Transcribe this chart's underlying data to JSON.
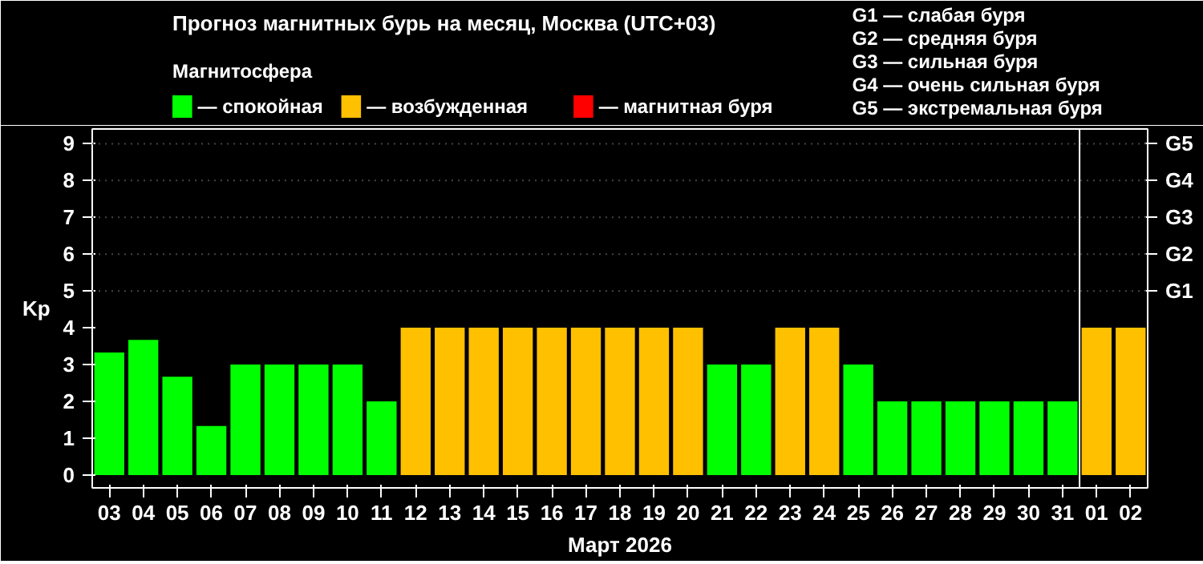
{
  "chart_data": {
    "type": "bar",
    "title": "Прогноз магнитных бурь на месяц, Москва (UTC+03)",
    "legend_title": "Магнитосфера",
    "xlabel": "Март 2026",
    "ylabel": "Kp",
    "categories": [
      "03",
      "04",
      "05",
      "06",
      "07",
      "08",
      "09",
      "10",
      "11",
      "12",
      "13",
      "14",
      "15",
      "16",
      "17",
      "18",
      "19",
      "20",
      "21",
      "22",
      "23",
      "24",
      "25",
      "26",
      "27",
      "28",
      "29",
      "30",
      "31",
      "01",
      "02"
    ],
    "stacked": true,
    "series": [
      {
        "name": "— спокойная",
        "color": "#00ff00",
        "values": [
          3.33,
          3.67,
          2.67,
          1.33,
          3,
          3,
          3,
          3,
          2,
          null,
          null,
          null,
          null,
          null,
          null,
          null,
          null,
          null,
          3,
          3,
          null,
          null,
          3,
          2,
          2,
          2,
          2,
          2,
          2,
          null,
          null
        ]
      },
      {
        "name": "— возбужденная",
        "color": "#ffc000",
        "values": [
          null,
          null,
          null,
          null,
          null,
          null,
          null,
          null,
          null,
          4,
          4,
          4,
          4,
          4,
          4,
          4,
          4,
          4,
          null,
          null,
          4,
          4,
          null,
          null,
          null,
          null,
          null,
          null,
          null,
          4,
          4
        ]
      },
      {
        "name": "— магнитная буря",
        "color": "#ff0000",
        "values": [
          null,
          null,
          null,
          null,
          null,
          null,
          null,
          null,
          null,
          null,
          null,
          null,
          null,
          null,
          null,
          null,
          null,
          null,
          null,
          null,
          null,
          null,
          null,
          null,
          null,
          null,
          null,
          null,
          null,
          null,
          null
        ]
      }
    ],
    "ylim": [
      -0.35,
      9.4
    ],
    "yticks": [
      0,
      1,
      2,
      3,
      4,
      5,
      6,
      7,
      8,
      9
    ],
    "legend": "top left",
    "ref_lines": [
      {
        "axis": "x",
        "value": "01",
        "color": "#ffffff"
      },
      {
        "axis": "y",
        "value": 5,
        "label": "G1",
        "color": "#444444",
        "line_style": "dotted"
      },
      {
        "axis": "y",
        "value": 6,
        "label": "G2",
        "color": "#444444",
        "line_style": "dotted"
      },
      {
        "axis": "y",
        "value": 7,
        "label": "G3",
        "color": "#444444",
        "line_style": "dotted"
      },
      {
        "axis": "y",
        "value": 8,
        "label": "G4",
        "color": "#444444",
        "line_style": "dotted"
      },
      {
        "axis": "y",
        "value": 9,
        "label": "G5",
        "color": "#444444",
        "line_style": "dotted"
      }
    ],
    "annotations": [
      "G1 — слабая буря",
      "G2 — средняя буря",
      "G3 — сильная буря",
      "G4 — очень сильная буря",
      "G5 — экстремальная буря"
    ]
  }
}
